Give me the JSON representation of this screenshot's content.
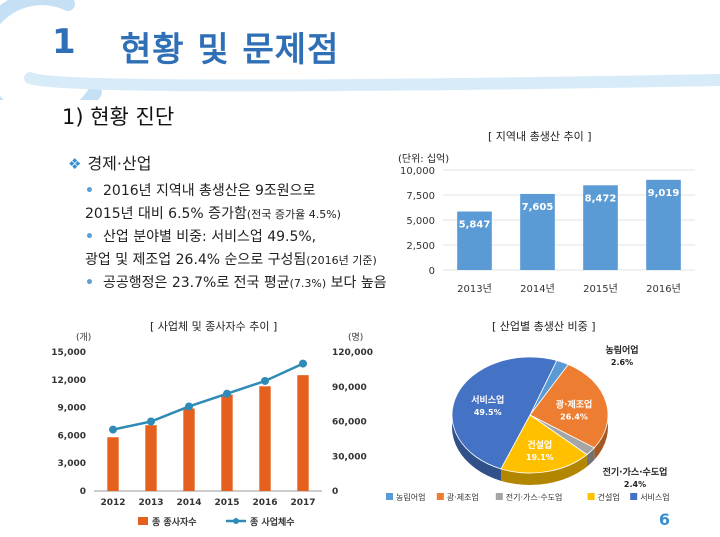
{
  "header": {
    "section_number": "1",
    "section_title": "현황 및 문제점",
    "accent_color": "#2f6fb6",
    "arc_color": "#c5e0f5"
  },
  "subheading": "1) 현황 진단",
  "economy": {
    "heading_icon": "diamond-bullet-icon",
    "heading_icon_glyph": "❖",
    "heading": "경제·산업",
    "bullets": [
      {
        "line1": "2016년 지역내 총생산은 9조원으로",
        "line2": "2015년 대비 6.5% 증가함",
        "line2_small": "(전국 증가율 4.5%)"
      },
      {
        "line1": "산업 분야별 비중: 서비스업 49.5%,",
        "line2": "광업 및 제조업 26.4% 순으로 구성됨",
        "line2_small": "(2016년 기준)"
      },
      {
        "line1": "공공행정은 23.7%로 전국 평균",
        "line1_small": "(7.3%)",
        "line1_tail": " 보다 높음"
      }
    ]
  },
  "page_number": "6",
  "chart_data": [
    {
      "type": "bar",
      "title": "[ 지역내 총생산 추이 ]",
      "unit_label": "(단위: 십억)",
      "categories": [
        "2013년",
        "2014년",
        "2015년",
        "2016년"
      ],
      "values": [
        5847,
        7605,
        8472,
        9019
      ],
      "value_labels": [
        "5,847",
        "7,605",
        "8,472",
        "9,019"
      ],
      "yticks": [
        "0",
        "2,500",
        "5,000",
        "7,500",
        "10,000"
      ],
      "ylim": [
        0,
        10000
      ],
      "grid": true,
      "bar_color": "#5b9bd5"
    },
    {
      "type": "bar",
      "title": "[ 사업체 및 종사자수 추이 ]",
      "left_unit": "(개)",
      "right_unit": "(명)",
      "categories": [
        "2012",
        "2013",
        "2014",
        "2015",
        "2016",
        "2017"
      ],
      "yticks_left": [
        "0",
        "3,000",
        "6,000",
        "9,000",
        "12,000",
        "15,000"
      ],
      "yticks_right": [
        "0",
        "30,000",
        "60,000",
        "90,000",
        "120,000"
      ],
      "ylim_left": [
        0,
        15000
      ],
      "ylim_right": [
        0,
        120000
      ],
      "series": [
        {
          "name": "종 종사자수",
          "kind": "bar",
          "axis": "left",
          "color": "#e5601f",
          "values": [
            5800,
            7100,
            8900,
            10400,
            11300,
            12500
          ]
        },
        {
          "name": "종 사업체수",
          "kind": "line",
          "axis": "right",
          "color": "#2e8bb7",
          "values": [
            53000,
            60000,
            73000,
            84000,
            95000,
            110000
          ]
        }
      ]
    },
    {
      "type": "pie",
      "title": "[ 산업별 총생산 비중 ]",
      "slices": [
        {
          "label": "농림어업",
          "value": 2.6,
          "value_label": "2.6%",
          "color": "#5b9bd5"
        },
        {
          "label": "광·제조업",
          "value": 26.4,
          "value_label": "26.4%",
          "color": "#ed7d31"
        },
        {
          "label": "전기·가스·수도업",
          "value": 2.4,
          "value_label": "2.4%",
          "color": "#a5a5a5"
        },
        {
          "label": "건설업",
          "value": 19.1,
          "value_label": "19.1%",
          "color": "#ffc000"
        },
        {
          "label": "서비스업",
          "value": 49.5,
          "value_label": "49.5%",
          "color": "#4472c4"
        }
      ],
      "legend_position": "bottom"
    }
  ]
}
